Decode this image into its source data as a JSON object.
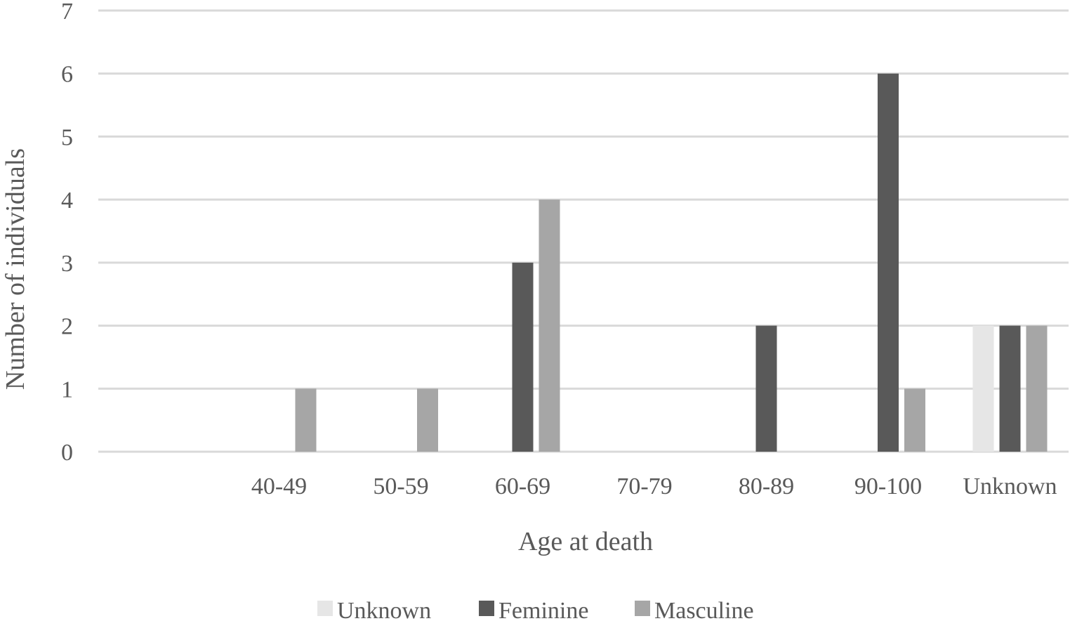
{
  "chart_data": {
    "type": "bar",
    "title": "",
    "xlabel": "Age at death",
    "ylabel": "Number of individuals",
    "ylim": [
      0,
      7
    ],
    "yticks": [
      "0",
      "1",
      "2",
      "3",
      "4",
      "5",
      "6",
      "7"
    ],
    "grid": true,
    "legend_position": "bottom",
    "categories": [
      "",
      "40-49",
      "50-59",
      "60-69",
      "70-79",
      "80-89",
      "90-100",
      "Unknown"
    ],
    "series": [
      {
        "name": "Unknown",
        "color": "#e6e6e6",
        "values": [
          0,
          0,
          0,
          0,
          0,
          0,
          0,
          2
        ]
      },
      {
        "name": "Feminine",
        "color": "#595959",
        "values": [
          0,
          0,
          0,
          3,
          0,
          2,
          6,
          2
        ]
      },
      {
        "name": "Masculine",
        "color": "#a6a6a6",
        "values": [
          0,
          1,
          1,
          4,
          0,
          0,
          1,
          2
        ]
      }
    ]
  }
}
